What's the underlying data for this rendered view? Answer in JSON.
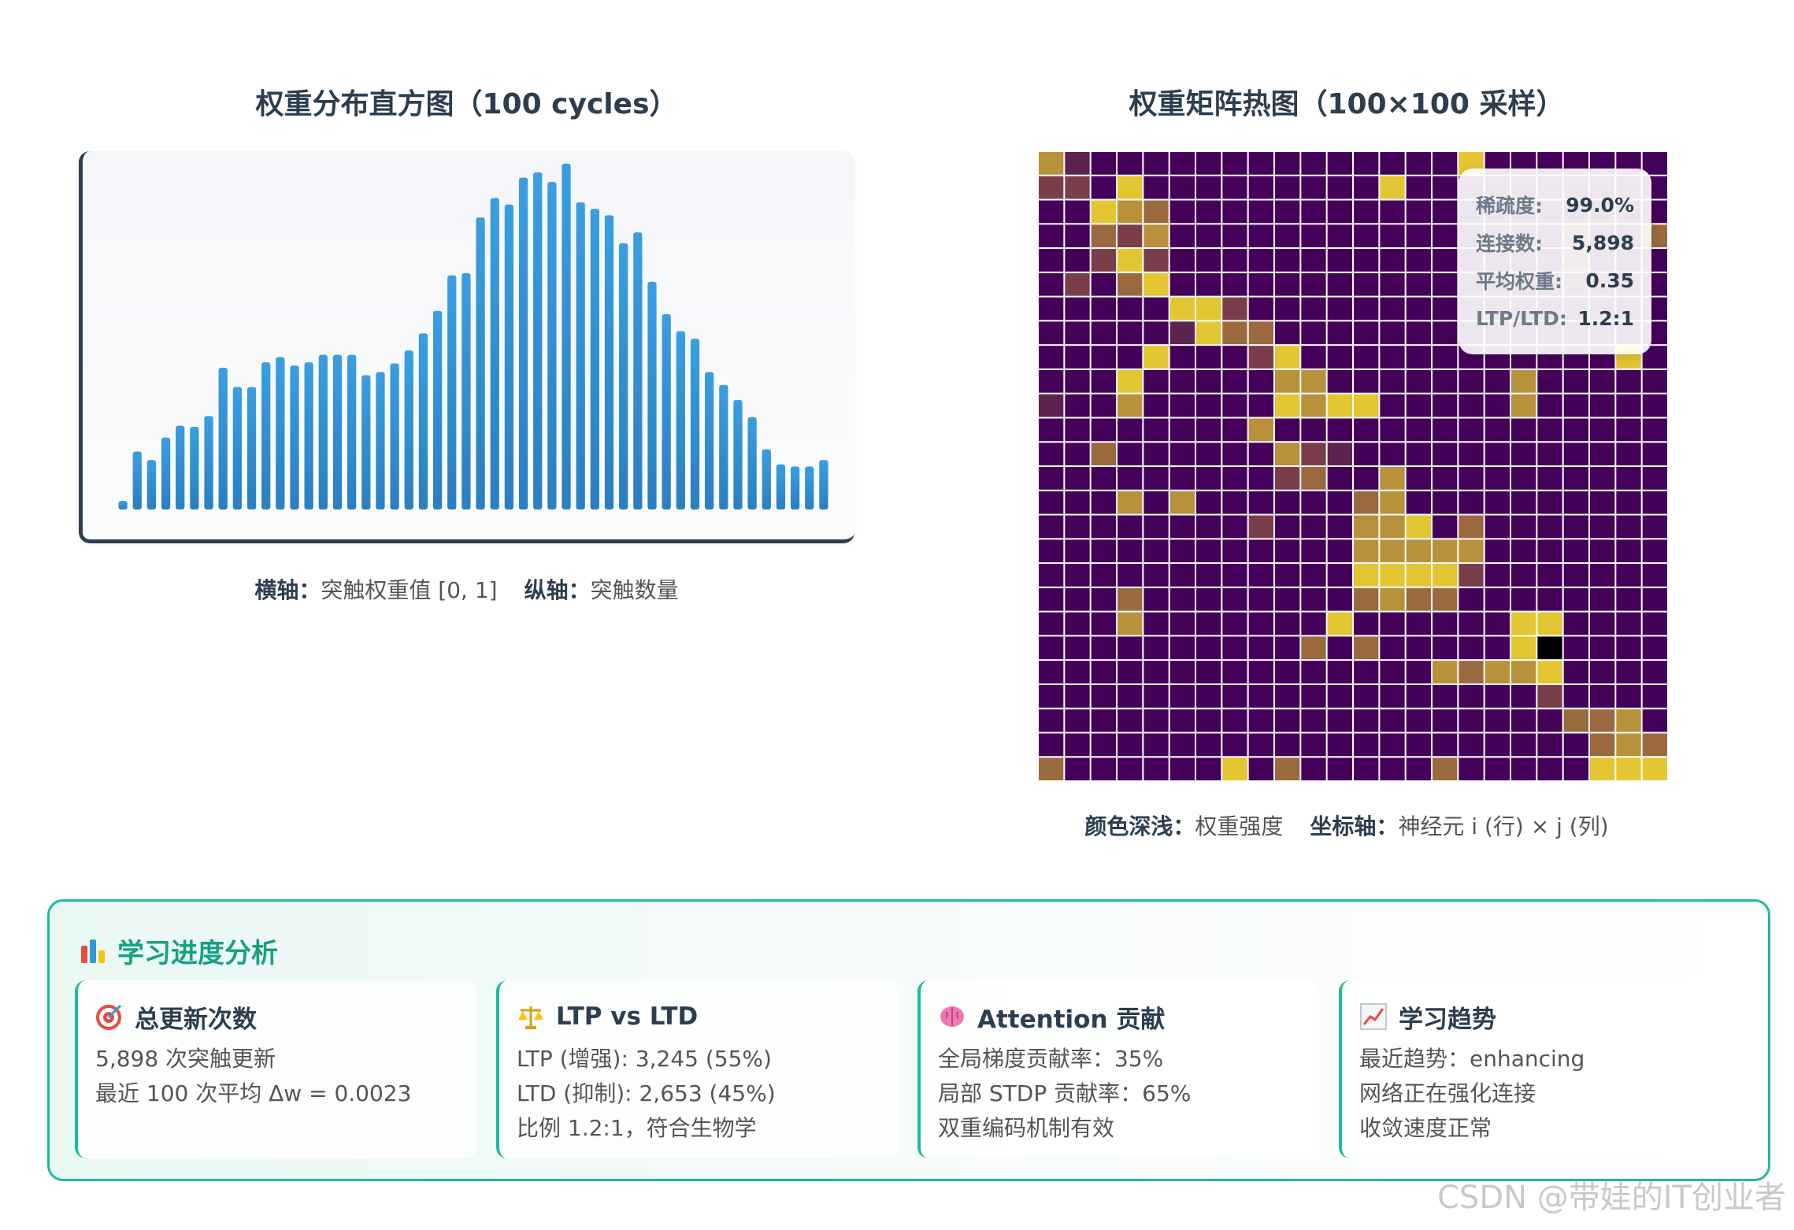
{
  "chart_data": [
    {
      "type": "bar",
      "title": "权重分布直方图（100 cycles）",
      "xlabel_key": "横轴：",
      "xlabel": "突触权重值 [0, 1]",
      "ylabel_key": "纵轴：",
      "ylabel": "突触数量",
      "values": [
        8,
        54,
        46,
        67,
        78,
        77,
        87,
        132,
        114,
        114,
        137,
        142,
        134,
        137,
        144,
        144,
        144,
        125,
        128,
        136,
        148,
        164,
        185,
        218,
        220,
        272,
        290,
        284,
        309,
        314,
        305,
        322,
        286,
        280,
        274,
        248,
        258,
        212,
        182,
        166,
        159,
        128,
        116,
        102,
        86,
        56,
        42,
        40,
        40,
        46
      ],
      "ylim": [
        0,
        330
      ],
      "grid": false,
      "color": "#2e86c8"
    },
    {
      "type": "heatmap",
      "title": "权重矩阵热图（100×100 采样）",
      "xlabel_key": "颜色深浅：",
      "xlabel": "权重强度",
      "ylabel_key": "坐标轴：",
      "ylabel": "神经元 i (行) × j (列)",
      "palette": [
        "#45005a",
        "#5e2450",
        "#7a3e4b",
        "#9a6a3e",
        "#b8913a",
        "#e4c532"
      ],
      "matrix": [
        "410000000000000050000000",
        "220500000000050000000000",
        "005430000000000000000000",
        "003240000000000000002003",
        "002520000000000000002000",
        "020350000000000000001000",
        "000005520000000000000000",
        "000001533000000000000000",
        "000050002500000000000050",
        "000500000440000000400000",
        "100400000545500000400000",
        "000000004000000000000000",
        "003000000421000000000000",
        "000000000230040000000000",
        "000404000000340000000000",
        "000000002000445030000000",
        "000000000000444440000000",
        "000000000000555520000000",
        "000300000000343300000000",
        "000400000005000000550000",
        "000000000030300000560000",
        "000000000000000434450000",
        "000000000000000000020000",
        "000000000000000000003340",
        "000000000000000000000343",
        "300000050300000300000555"
      ],
      "stats": [
        {
          "key": "稀疏度:",
          "value": "99.0%"
        },
        {
          "key": "连接数:",
          "value": "5,898"
        },
        {
          "key": "平均权重:",
          "value": "0.35"
        },
        {
          "key": "LTP/LTD:",
          "value": "1.2:1"
        }
      ]
    }
  ],
  "panel": {
    "title": "学习进度分析",
    "title_icon": "bar-chart-icon",
    "accent": "#1abc9c",
    "cards": [
      {
        "icon": "target-icon",
        "title": "总更新次数",
        "lines": [
          "5,898 次突触更新",
          "最近 100 次平均 Δw = 0.0023"
        ]
      },
      {
        "icon": "balance-scale-icon",
        "title": "LTP vs LTD",
        "lines": [
          "LTP (增强): 3,245 (55%)",
          "LTD (抑制): 2,653 (45%)",
          "比例 1.2:1，符合生物学"
        ]
      },
      {
        "icon": "brain-icon",
        "title": "Attention 贡献",
        "lines": [
          "全局梯度贡献率：35%",
          "局部 STDP 贡献率：65%",
          "双重编码机制有效"
        ]
      },
      {
        "icon": "trend-chart-icon",
        "title": "学习趋势",
        "lines": [
          "最近趋势：enhancing",
          "网络正在强化连接",
          "收敛速度正常"
        ]
      }
    ]
  },
  "watermark": "CSDN @带娃的IT创业者"
}
